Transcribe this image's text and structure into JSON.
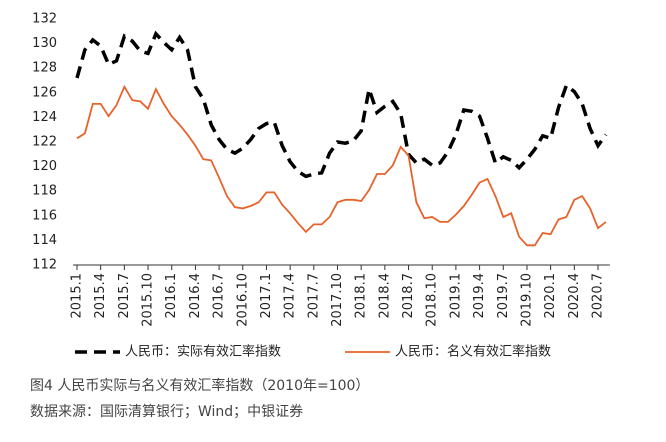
{
  "chart_data": {
    "type": "line",
    "categories": [
      "2015.1",
      null,
      null,
      "2015.4",
      null,
      null,
      "2015.7",
      null,
      null,
      "2015.10",
      null,
      null,
      "2016.1",
      null,
      null,
      "2016.4",
      null,
      null,
      "2016.7",
      null,
      null,
      "2016.10",
      null,
      null,
      "2017.1",
      null,
      null,
      "2017.4",
      null,
      null,
      "2017.7",
      null,
      null,
      "2017.10",
      null,
      null,
      "2018.1",
      null,
      null,
      "2018.4",
      null,
      null,
      "2018.7",
      null,
      null,
      "2018.10",
      null,
      null,
      "2019.1",
      null,
      null,
      "2019.4",
      null,
      null,
      "2019.7",
      null,
      null,
      "2019.10",
      null,
      null,
      "2020.1",
      null,
      null,
      "2020.4",
      null,
      null,
      "2020.7",
      null
    ],
    "series": [
      {
        "name": "人民币：实际有效汇率指数",
        "color": "#000000",
        "dashed": true,
        "values": [
          127.2,
          129.5,
          130.3,
          129.8,
          128.3,
          128.6,
          130.6,
          130.2,
          129.4,
          129.2,
          130.8,
          130.1,
          129.5,
          130.5,
          129.5,
          126.5,
          125.5,
          123.4,
          122.2,
          121.4,
          121.1,
          121.5,
          122.2,
          123.1,
          123.5,
          123.6,
          121.7,
          120.4,
          119.6,
          119.2,
          119.4,
          119.5,
          121.1,
          122.0,
          121.9,
          122.1,
          122.9,
          126.3,
          124.4,
          124.9,
          125.3,
          124.3,
          121.0,
          120.3,
          120.6,
          120.1,
          120.3,
          121.2,
          122.6,
          124.6,
          124.5,
          124.1,
          122.3,
          120.3,
          120.8,
          120.5,
          119.9,
          120.6,
          121.4,
          122.5,
          122.3,
          124.8,
          126.6,
          126.1,
          125.1,
          123.1,
          121.7,
          122.6
        ]
      },
      {
        "name": "人民币：名义有效汇率指数",
        "color": "#e8622c",
        "dashed": false,
        "values": [
          122.3,
          122.7,
          125.1,
          125.1,
          124.1,
          125.0,
          126.5,
          125.4,
          125.3,
          124.7,
          126.3,
          125.1,
          124.1,
          123.4,
          122.6,
          121.7,
          120.6,
          120.5,
          119.1,
          117.6,
          116.7,
          116.6,
          116.8,
          117.1,
          117.9,
          117.9,
          116.9,
          116.2,
          115.4,
          114.7,
          115.3,
          115.3,
          115.9,
          117.1,
          117.3,
          117.3,
          117.2,
          118.1,
          119.4,
          119.4,
          120.1,
          121.6,
          120.9,
          117.1,
          115.8,
          115.9,
          115.5,
          115.5,
          116.1,
          116.8,
          117.7,
          118.7,
          119.0,
          117.6,
          115.9,
          116.2,
          114.3,
          113.6,
          113.6,
          114.6,
          114.5,
          115.7,
          115.9,
          117.3,
          117.6,
          116.6,
          115.0,
          115.5
        ]
      }
    ],
    "ylim": [
      112,
      132
    ],
    "yticks": [
      112,
      114,
      116,
      118,
      120,
      122,
      124,
      126,
      128,
      130,
      132
    ],
    "grid": false,
    "caption": "图4 人民币实际与名义有效汇率指数（2010年=100）",
    "source": "数据来源：国际清算银行；Wind；中银证券"
  }
}
